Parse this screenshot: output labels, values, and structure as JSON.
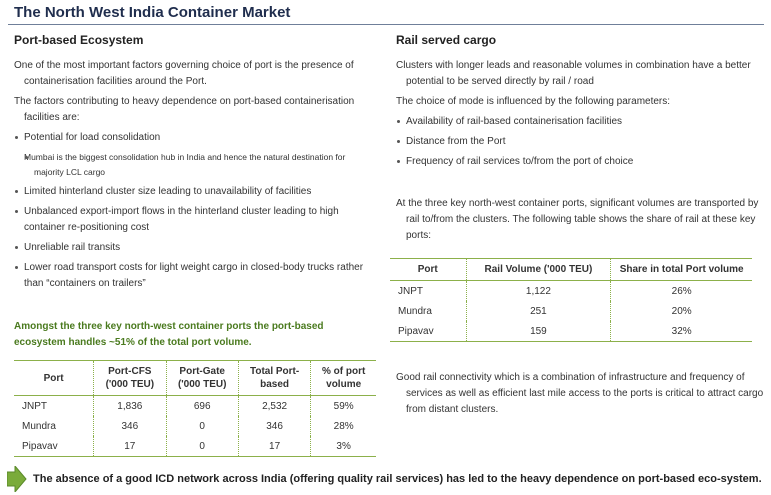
{
  "title": "The North West India Container Market",
  "left": {
    "heading": "Port-based Ecosystem",
    "paragraphs": [
      "One of the most important factors governing choice of port is the presence of containerisation facilities around the Port.",
      "The factors contributing to heavy dependence on port-based containerisation facilities are:"
    ],
    "bullets": [
      {
        "text": "Potential for load consolidation",
        "sub": "Mumbai is the biggest consolidation hub in India and hence the natural destination for majority LCL cargo"
      },
      {
        "text": "Limited hinterland cluster size leading to unavailability of facilities"
      },
      {
        "text": "Unbalanced export-import flows in the hinterland cluster leading to high container re-positioning cost"
      },
      {
        "text": "Unreliable rail transits"
      },
      {
        "text": "Lower road transport costs for light weight cargo in closed-body trucks rather than “containers on trailers”"
      }
    ],
    "highlight": "Amongst the three key north-west container ports the port-based ecosystem handles ~51% of the total port volume.",
    "table": {
      "headers": [
        "Port",
        "Port-CFS ('000 TEU)",
        "Port-Gate ('000 TEU)",
        "Total Port-based",
        "% of port volume"
      ],
      "rows": [
        [
          "JNPT",
          "1,836",
          "696",
          "2,532",
          "59%"
        ],
        [
          "Mundra",
          "346",
          "0",
          "346",
          "28%"
        ],
        [
          "Pipavav",
          "17",
          "0",
          "17",
          "3%"
        ]
      ]
    }
  },
  "right": {
    "heading": "Rail served cargo",
    "paragraphs": [
      "Clusters with longer leads and reasonable volumes in combination have a better potential to be served directly by rail / road",
      "The choice of mode is influenced by the following parameters:"
    ],
    "bullets": [
      "Availability of rail-based containerisation facilities",
      "Distance from the Port",
      "Frequency of rail services to/from the port of choice"
    ],
    "intro": "At the three key north-west container ports, significant volumes are transported by rail to/from the clusters. The following table shows the share of rail  at these key ports:",
    "table": {
      "headers": [
        "Port",
        "Rail Volume ('000 TEU)",
        "Share in total Port volume"
      ],
      "rows": [
        [
          "JNPT",
          "1,122",
          "26%"
        ],
        [
          "Mundra",
          "251",
          "20%"
        ],
        [
          "Pipavav",
          "159",
          "32%"
        ]
      ]
    },
    "closing": "Good rail connectivity which is a combination of infrastructure and frequency of services as well as efficient last mile access to the ports is critical to attract cargo from distant clusters."
  },
  "footer": "The absence of a good ICD network across India (offering quality rail services) has led to the heavy dependence on port-based eco-system."
}
